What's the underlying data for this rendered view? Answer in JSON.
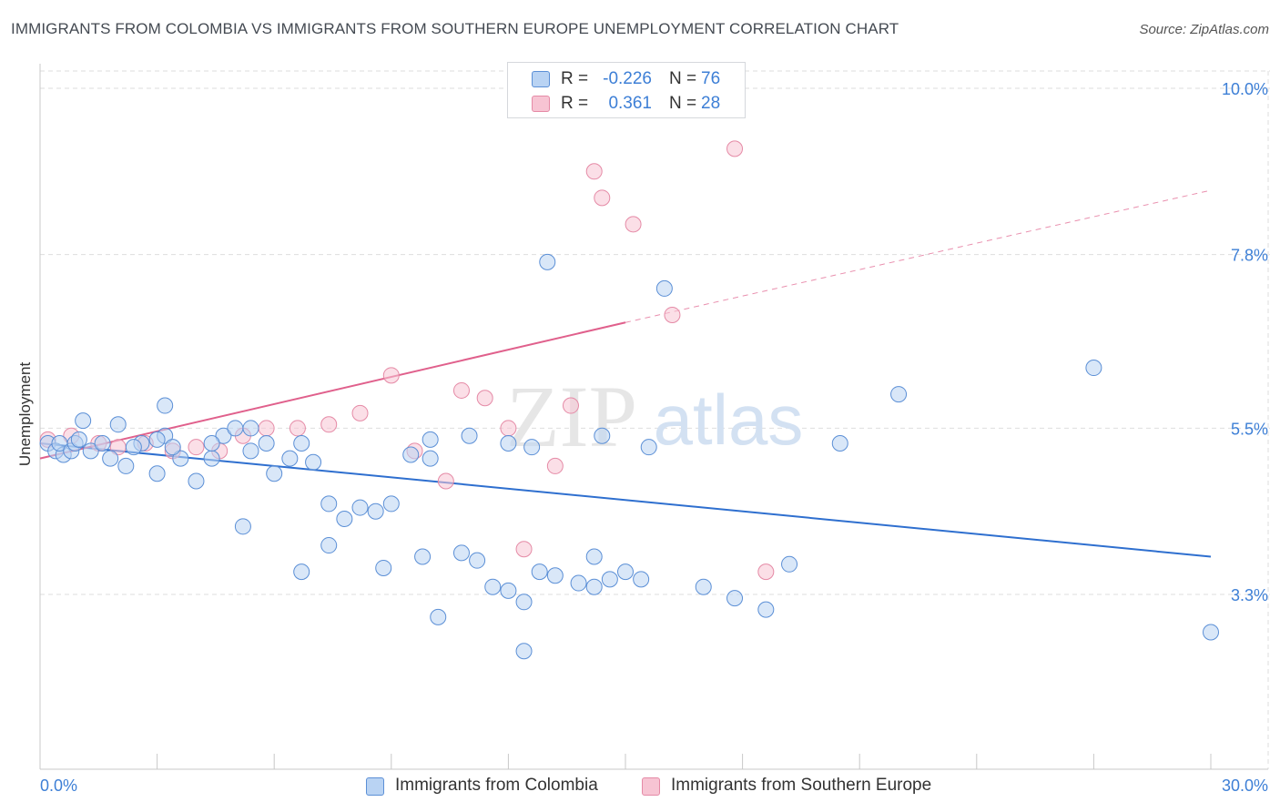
{
  "title": "IMMIGRANTS FROM COLOMBIA VS IMMIGRANTS FROM SOUTHERN EUROPE UNEMPLOYMENT CORRELATION CHART",
  "source": "Source: ZipAtlas.com",
  "watermark": {
    "zip": "ZIP",
    "atlas": "atlas"
  },
  "legend_top": [
    {
      "r_label": "R =",
      "r_value": "-0.226",
      "n_label": "N =",
      "n_value": "76"
    },
    {
      "r_label": "R =",
      "r_value": "0.361",
      "n_label": "N =",
      "n_value": "28"
    }
  ],
  "legend_bottom": [
    {
      "label": "Immigrants from Colombia"
    },
    {
      "label": "Immigrants from Southern Europe"
    }
  ],
  "colors": {
    "colombia_fill": "#b9d3f3",
    "colombia_stroke": "#5b8fd6",
    "colombia_line": "#2e6fcf",
    "southern_europe_fill": "#f7c4d3",
    "southern_europe_stroke": "#e58aa6",
    "southern_europe_line": "#e0608c",
    "tick_label": "#3d7fd6"
  },
  "chart_data": {
    "type": "scatter",
    "title": "IMMIGRANTS FROM COLOMBIA VS IMMIGRANTS FROM SOUTHERN EUROPE UNEMPLOYMENT CORRELATION CHART",
    "xlabel": "",
    "ylabel": "Unemployment",
    "xlim": [
      0,
      30
    ],
    "ylim": [
      1.0,
      10.9
    ],
    "x_tick_labels": [
      "0.0%",
      "30.0%"
    ],
    "y_ticks": [
      3.3,
      5.5,
      7.8,
      10.0
    ],
    "y_tick_labels": [
      "3.3%",
      "5.5%",
      "7.8%",
      "10.0%"
    ],
    "grid": true,
    "legend_position": "top-center",
    "series": [
      {
        "name": "Immigrants from Colombia",
        "points": [
          [
            0.2,
            5.3
          ],
          [
            0.4,
            5.2
          ],
          [
            0.6,
            5.15
          ],
          [
            0.5,
            5.3
          ],
          [
            0.8,
            5.2
          ],
          [
            0.9,
            5.3
          ],
          [
            1.0,
            5.35
          ],
          [
            1.3,
            5.2
          ],
          [
            1.1,
            5.6
          ],
          [
            1.6,
            5.3
          ],
          [
            1.8,
            5.1
          ],
          [
            2.2,
            5.0
          ],
          [
            2.0,
            5.55
          ],
          [
            2.6,
            5.3
          ],
          [
            2.4,
            5.25
          ],
          [
            3.2,
            5.4
          ],
          [
            3.0,
            4.9
          ],
          [
            3.6,
            5.1
          ],
          [
            4.0,
            4.8
          ],
          [
            4.4,
            5.1
          ],
          [
            3.4,
            5.25
          ],
          [
            4.7,
            5.4
          ],
          [
            5.0,
            5.5
          ],
          [
            5.4,
            5.2
          ],
          [
            5.8,
            5.3
          ],
          [
            6.0,
            4.9
          ],
          [
            6.4,
            5.1
          ],
          [
            6.7,
            5.3
          ],
          [
            7.0,
            5.05
          ],
          [
            7.4,
            4.5
          ],
          [
            7.8,
            4.3
          ],
          [
            8.2,
            4.45
          ],
          [
            8.6,
            4.4
          ],
          [
            9.0,
            4.5
          ],
          [
            9.5,
            5.15
          ],
          [
            10.0,
            5.1
          ],
          [
            10.8,
            3.85
          ],
          [
            11.2,
            3.75
          ],
          [
            11.6,
            3.4
          ],
          [
            12.0,
            3.35
          ],
          [
            12.4,
            3.2
          ],
          [
            12.8,
            3.6
          ],
          [
            13.2,
            3.55
          ],
          [
            13.8,
            3.45
          ],
          [
            14.2,
            3.4
          ],
          [
            14.6,
            3.5
          ],
          [
            15.0,
            3.6
          ],
          [
            15.4,
            3.5
          ],
          [
            9.8,
            3.8
          ],
          [
            8.8,
            3.65
          ],
          [
            7.4,
            3.95
          ],
          [
            6.7,
            3.6
          ],
          [
            5.2,
            4.2
          ],
          [
            10.2,
            3.0
          ],
          [
            12.4,
            2.55
          ],
          [
            14.2,
            3.8
          ],
          [
            17.0,
            3.4
          ],
          [
            17.8,
            3.25
          ],
          [
            18.6,
            3.1
          ],
          [
            19.2,
            3.7
          ],
          [
            14.4,
            5.4
          ],
          [
            15.6,
            5.25
          ],
          [
            12.0,
            5.3
          ],
          [
            12.6,
            5.25
          ],
          [
            10.0,
            5.35
          ],
          [
            11.0,
            5.4
          ],
          [
            3.2,
            5.8
          ],
          [
            3.0,
            5.35
          ],
          [
            4.4,
            5.3
          ],
          [
            5.4,
            5.5
          ],
          [
            20.5,
            5.3
          ],
          [
            22.0,
            5.95
          ],
          [
            27.0,
            6.3
          ],
          [
            30.0,
            2.8
          ],
          [
            13.0,
            7.7
          ],
          [
            16.0,
            7.35
          ]
        ]
      },
      {
        "name": "Immigrants from Southern Europe",
        "points": [
          [
            0.2,
            5.35
          ],
          [
            0.8,
            5.4
          ],
          [
            1.5,
            5.3
          ],
          [
            2.0,
            5.25
          ],
          [
            2.7,
            5.3
          ],
          [
            3.4,
            5.2
          ],
          [
            4.0,
            5.25
          ],
          [
            4.6,
            5.2
          ],
          [
            5.2,
            5.4
          ],
          [
            5.8,
            5.5
          ],
          [
            6.6,
            5.5
          ],
          [
            7.4,
            5.55
          ],
          [
            8.2,
            5.7
          ],
          [
            9.0,
            6.2
          ],
          [
            9.6,
            5.2
          ],
          [
            10.4,
            4.8
          ],
          [
            10.8,
            6.0
          ],
          [
            11.4,
            5.9
          ],
          [
            12.0,
            5.5
          ],
          [
            12.4,
            3.9
          ],
          [
            13.2,
            5.0
          ],
          [
            13.6,
            5.8
          ],
          [
            14.2,
            8.9
          ],
          [
            14.4,
            8.55
          ],
          [
            15.2,
            8.2
          ],
          [
            16.2,
            7.0
          ],
          [
            17.8,
            9.2
          ],
          [
            18.6,
            3.6
          ]
        ]
      }
    ],
    "trend_lines": [
      {
        "series": "Immigrants from Colombia",
        "x": [
          0,
          30
        ],
        "y": [
          5.3,
          3.8
        ]
      },
      {
        "series": "Immigrants from Southern Europe",
        "x": [
          0,
          15
        ],
        "y": [
          5.1,
          6.9
        ],
        "dashed_extension": {
          "x": [
            15,
            30
          ],
          "y": [
            6.9,
            8.65
          ]
        }
      }
    ]
  }
}
